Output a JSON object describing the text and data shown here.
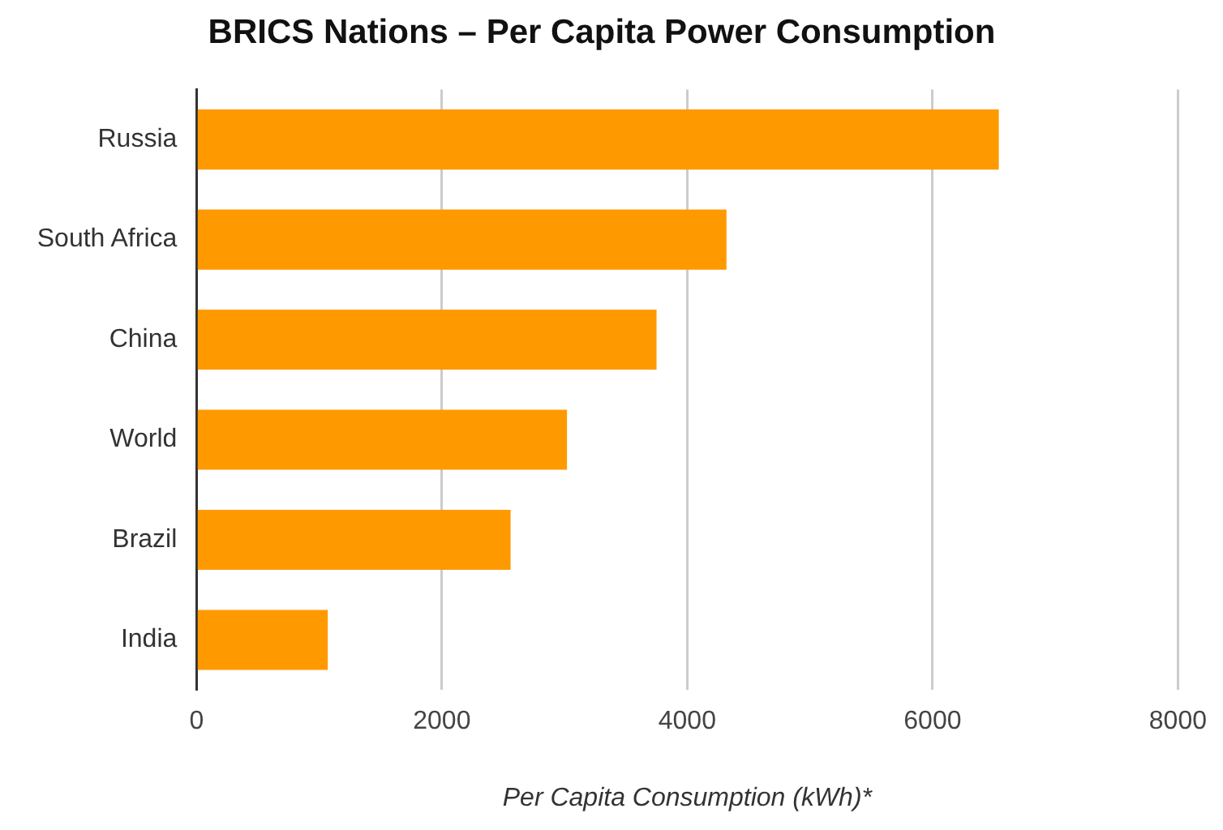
{
  "chart_data": {
    "type": "bar",
    "orientation": "horizontal",
    "title": "BRICS Nations – Per Capita Power Consumption",
    "xlabel": "Per Capita Consumption (kWh)*",
    "categories": [
      "Russia",
      "South Africa",
      "China",
      "World",
      "Brazil",
      "India"
    ],
    "values": [
      6540,
      4320,
      3750,
      3020,
      2560,
      1070
    ],
    "color": "#ff9900",
    "xlim": [
      0,
      8000
    ],
    "xticks": [
      0,
      2000,
      4000,
      6000,
      8000
    ],
    "grid": "x",
    "legend": false
  }
}
